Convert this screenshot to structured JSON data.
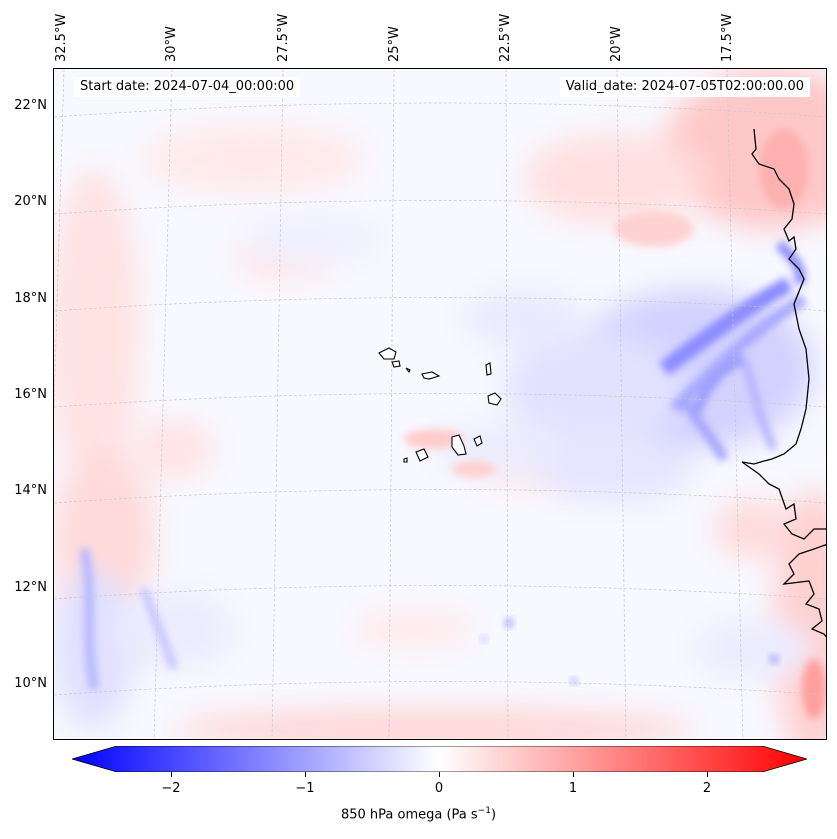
{
  "map": {
    "start_label": "Start date: 2024-07-04_00:00:00",
    "valid_label": "Valid_date: 2024-07-05T02:00:00.00",
    "longitude_labels": [
      "32.5°W",
      "30°W",
      "27.5°W",
      "25°W",
      "22.5°W",
      "20°W",
      "17.5°W"
    ],
    "latitude_labels": [
      "22°N",
      "20°N",
      "18°N",
      "16°N",
      "14°N",
      "12°N",
      "10°N"
    ],
    "gridlines": true,
    "coastline_color": "#000000",
    "projection": "conic"
  },
  "colorbar": {
    "title_main": "850 hPa omega (Pa s",
    "title_exp": "−1",
    "title_end": ")",
    "ticks": [
      "−2",
      "−1",
      "0",
      "1",
      "2"
    ],
    "tick_values": [
      -2,
      -1,
      0,
      1,
      2
    ],
    "range": [
      -2.6,
      2.6
    ],
    "extend": "both",
    "colormap": "bwr",
    "low_color": "#0000ff",
    "mid_color": "#ffffff",
    "high_color": "#ff0000"
  }
}
